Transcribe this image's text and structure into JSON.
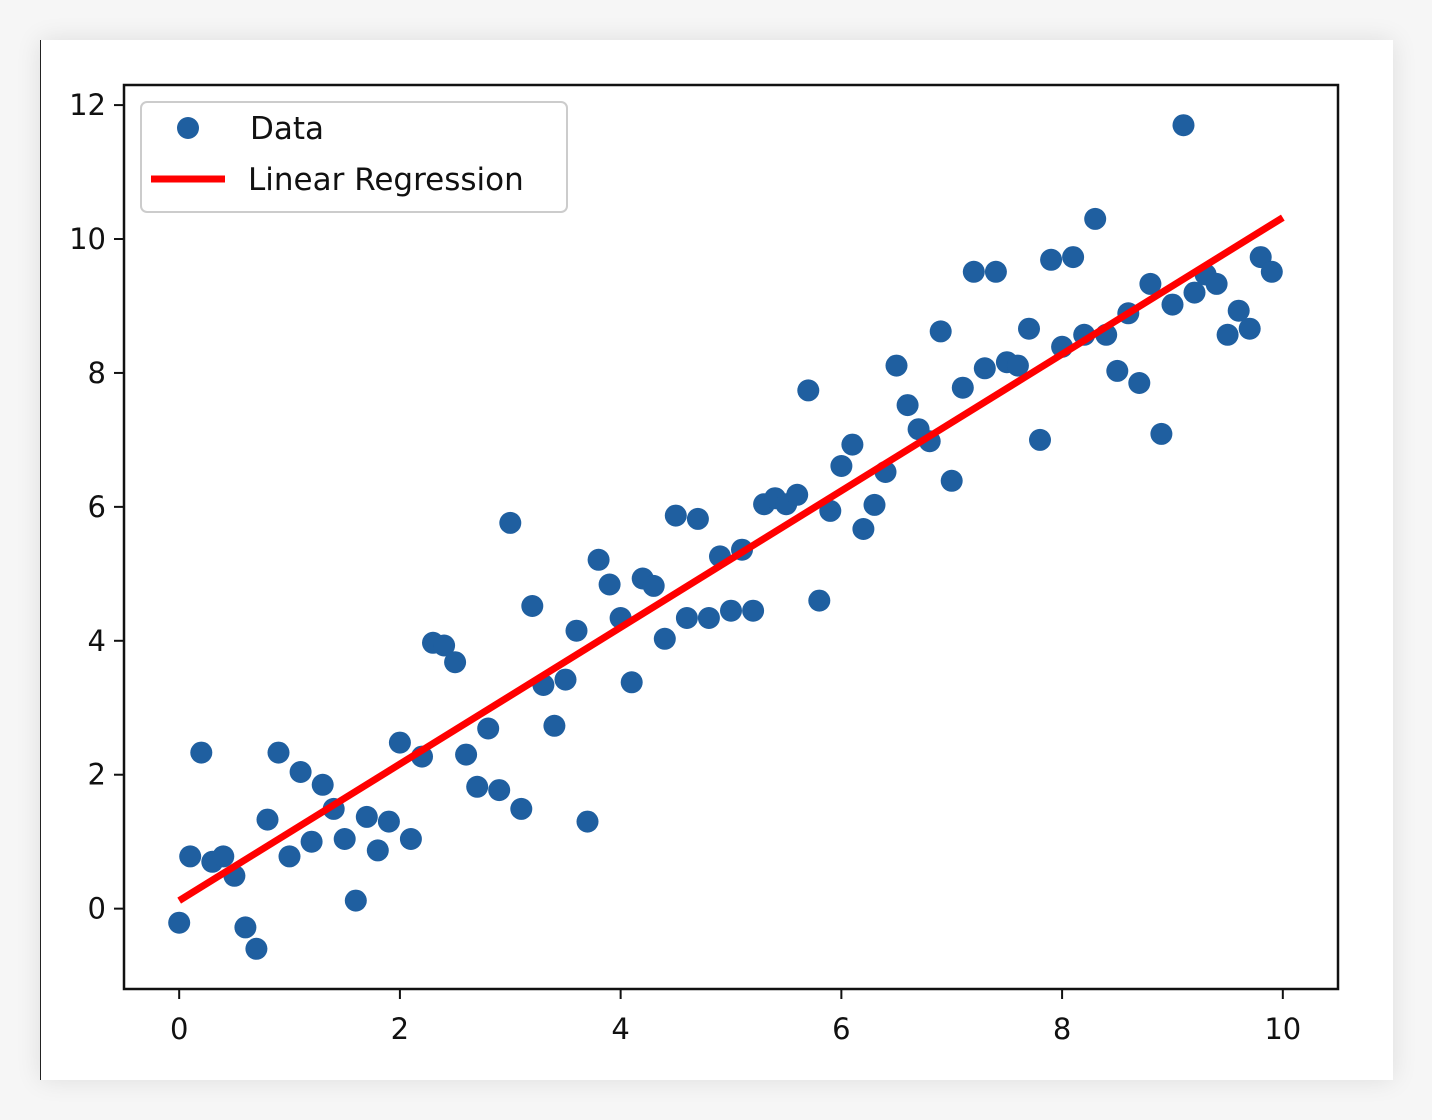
{
  "chart_data": {
    "type": "scatter",
    "title": "",
    "xlabel": "",
    "ylabel": "",
    "xlim": [
      -0.5,
      10.5
    ],
    "ylim": [
      -1.2,
      12.3
    ],
    "x_ticks": [
      0,
      2,
      4,
      6,
      8,
      10
    ],
    "y_ticks": [
      0,
      2,
      4,
      6,
      8,
      10,
      12
    ],
    "x_tick_labels": [
      "0",
      "2",
      "4",
      "6",
      "8",
      "10"
    ],
    "y_tick_labels": [
      "0",
      "2",
      "4",
      "6",
      "8",
      "10",
      "12"
    ],
    "grid": false,
    "legend": {
      "position": "top-left",
      "entries": [
        "Data",
        "Linear Regression"
      ]
    },
    "series": [
      {
        "name": "Data",
        "type": "scatter",
        "color": "#1f5fa0",
        "points": [
          [
            0.0,
            -0.21
          ],
          [
            0.1,
            0.78
          ],
          [
            0.2,
            2.33
          ],
          [
            0.3,
            0.7
          ],
          [
            0.4,
            0.78
          ],
          [
            0.5,
            0.49
          ],
          [
            0.6,
            -0.28
          ],
          [
            0.7,
            -0.6
          ],
          [
            0.8,
            1.33
          ],
          [
            0.9,
            2.33
          ],
          [
            1.0,
            0.78
          ],
          [
            1.1,
            2.04
          ],
          [
            1.2,
            1.0
          ],
          [
            1.3,
            1.85
          ],
          [
            1.4,
            1.49
          ],
          [
            1.5,
            1.04
          ],
          [
            1.6,
            0.12
          ],
          [
            1.7,
            1.37
          ],
          [
            1.8,
            0.87
          ],
          [
            1.9,
            1.3
          ],
          [
            2.0,
            2.48
          ],
          [
            2.1,
            1.04
          ],
          [
            2.2,
            2.27
          ],
          [
            2.3,
            3.97
          ],
          [
            2.4,
            3.93
          ],
          [
            2.5,
            3.68
          ],
          [
            2.6,
            2.3
          ],
          [
            2.7,
            1.82
          ],
          [
            2.8,
            2.69
          ],
          [
            2.9,
            1.77
          ],
          [
            3.0,
            5.76
          ],
          [
            3.1,
            1.49
          ],
          [
            3.2,
            4.52
          ],
          [
            3.3,
            3.34
          ],
          [
            3.4,
            2.73
          ],
          [
            3.5,
            3.42
          ],
          [
            3.6,
            4.15
          ],
          [
            3.7,
            1.3
          ],
          [
            3.8,
            5.21
          ],
          [
            3.9,
            4.84
          ],
          [
            4.0,
            4.34
          ],
          [
            4.1,
            3.38
          ],
          [
            4.2,
            4.93
          ],
          [
            4.3,
            4.82
          ],
          [
            4.4,
            4.03
          ],
          [
            4.5,
            5.87
          ],
          [
            4.6,
            4.34
          ],
          [
            4.7,
            5.82
          ],
          [
            4.8,
            4.34
          ],
          [
            4.9,
            5.26
          ],
          [
            5.0,
            4.45
          ],
          [
            5.1,
            5.36
          ],
          [
            5.2,
            4.45
          ],
          [
            5.3,
            6.04
          ],
          [
            5.4,
            6.13
          ],
          [
            5.5,
            6.04
          ],
          [
            5.6,
            6.18
          ],
          [
            5.7,
            7.74
          ],
          [
            5.8,
            4.6
          ],
          [
            5.9,
            5.94
          ],
          [
            6.0,
            6.61
          ],
          [
            6.1,
            6.93
          ],
          [
            6.2,
            5.67
          ],
          [
            6.3,
            6.03
          ],
          [
            6.4,
            6.52
          ],
          [
            6.5,
            8.11
          ],
          [
            6.6,
            7.52
          ],
          [
            6.7,
            7.16
          ],
          [
            6.8,
            6.98
          ],
          [
            6.9,
            8.62
          ],
          [
            7.0,
            6.39
          ],
          [
            7.1,
            7.78
          ],
          [
            7.2,
            9.51
          ],
          [
            7.3,
            8.07
          ],
          [
            7.4,
            9.51
          ],
          [
            7.5,
            8.16
          ],
          [
            7.6,
            8.11
          ],
          [
            7.7,
            8.66
          ],
          [
            7.8,
            7.0
          ],
          [
            7.9,
            9.69
          ],
          [
            8.0,
            8.39
          ],
          [
            8.1,
            9.73
          ],
          [
            8.2,
            8.57
          ],
          [
            8.3,
            10.3
          ],
          [
            8.4,
            8.57
          ],
          [
            8.5,
            8.03
          ],
          [
            8.6,
            8.89
          ],
          [
            8.7,
            7.85
          ],
          [
            8.8,
            9.33
          ],
          [
            8.9,
            7.09
          ],
          [
            9.0,
            9.02
          ],
          [
            9.1,
            11.7
          ],
          [
            9.2,
            9.2
          ],
          [
            9.3,
            9.47
          ],
          [
            9.4,
            9.33
          ],
          [
            9.5,
            8.57
          ],
          [
            9.6,
            8.93
          ],
          [
            9.7,
            8.66
          ],
          [
            9.8,
            9.73
          ],
          [
            9.9,
            9.51
          ]
        ]
      },
      {
        "name": "Linear Regression",
        "type": "line",
        "color": "#ff0000",
        "points": [
          [
            0.0,
            0.12
          ],
          [
            10.0,
            10.32
          ]
        ]
      }
    ]
  }
}
